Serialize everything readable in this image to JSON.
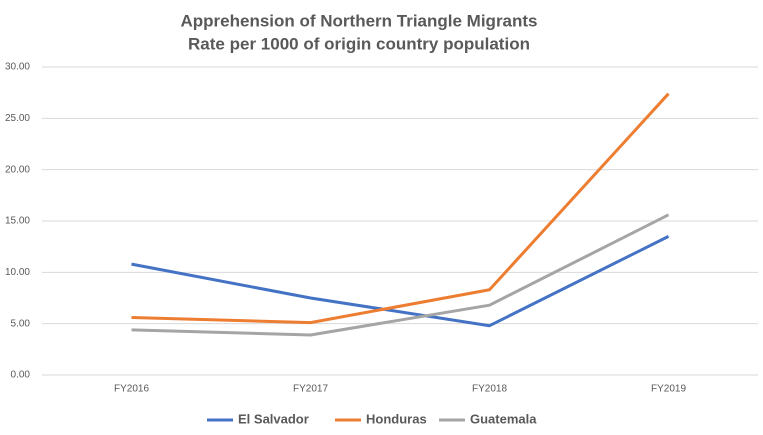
{
  "chart_data": {
    "type": "line",
    "title": "Apprehension of Northern Triangle Migrants",
    "subtitle": "Rate per 1000 of origin country population",
    "categories": [
      "FY2016",
      "FY2017",
      "FY2018",
      "FY2019"
    ],
    "series": [
      {
        "name": "El Salvador",
        "color": "#4472c4",
        "values": [
          10.8,
          7.5,
          4.8,
          13.5
        ]
      },
      {
        "name": "Honduras",
        "color": "#ed7d31",
        "values": [
          5.6,
          5.1,
          8.3,
          27.4
        ]
      },
      {
        "name": "Guatemala",
        "color": "#a5a5a5",
        "values": [
          4.4,
          3.9,
          6.8,
          15.6
        ]
      }
    ],
    "ylim": [
      0,
      30
    ],
    "yticks": [
      {
        "value": 0,
        "label": "0.00"
      },
      {
        "value": 5,
        "label": "5.00"
      },
      {
        "value": 10,
        "label": "10.00"
      },
      {
        "value": 15,
        "label": "15.00"
      },
      {
        "value": 20,
        "label": "20.00"
      },
      {
        "value": 25,
        "label": "25.00"
      },
      {
        "value": 30,
        "label": "30.00"
      }
    ],
    "grid": true,
    "legend": "bottom"
  }
}
